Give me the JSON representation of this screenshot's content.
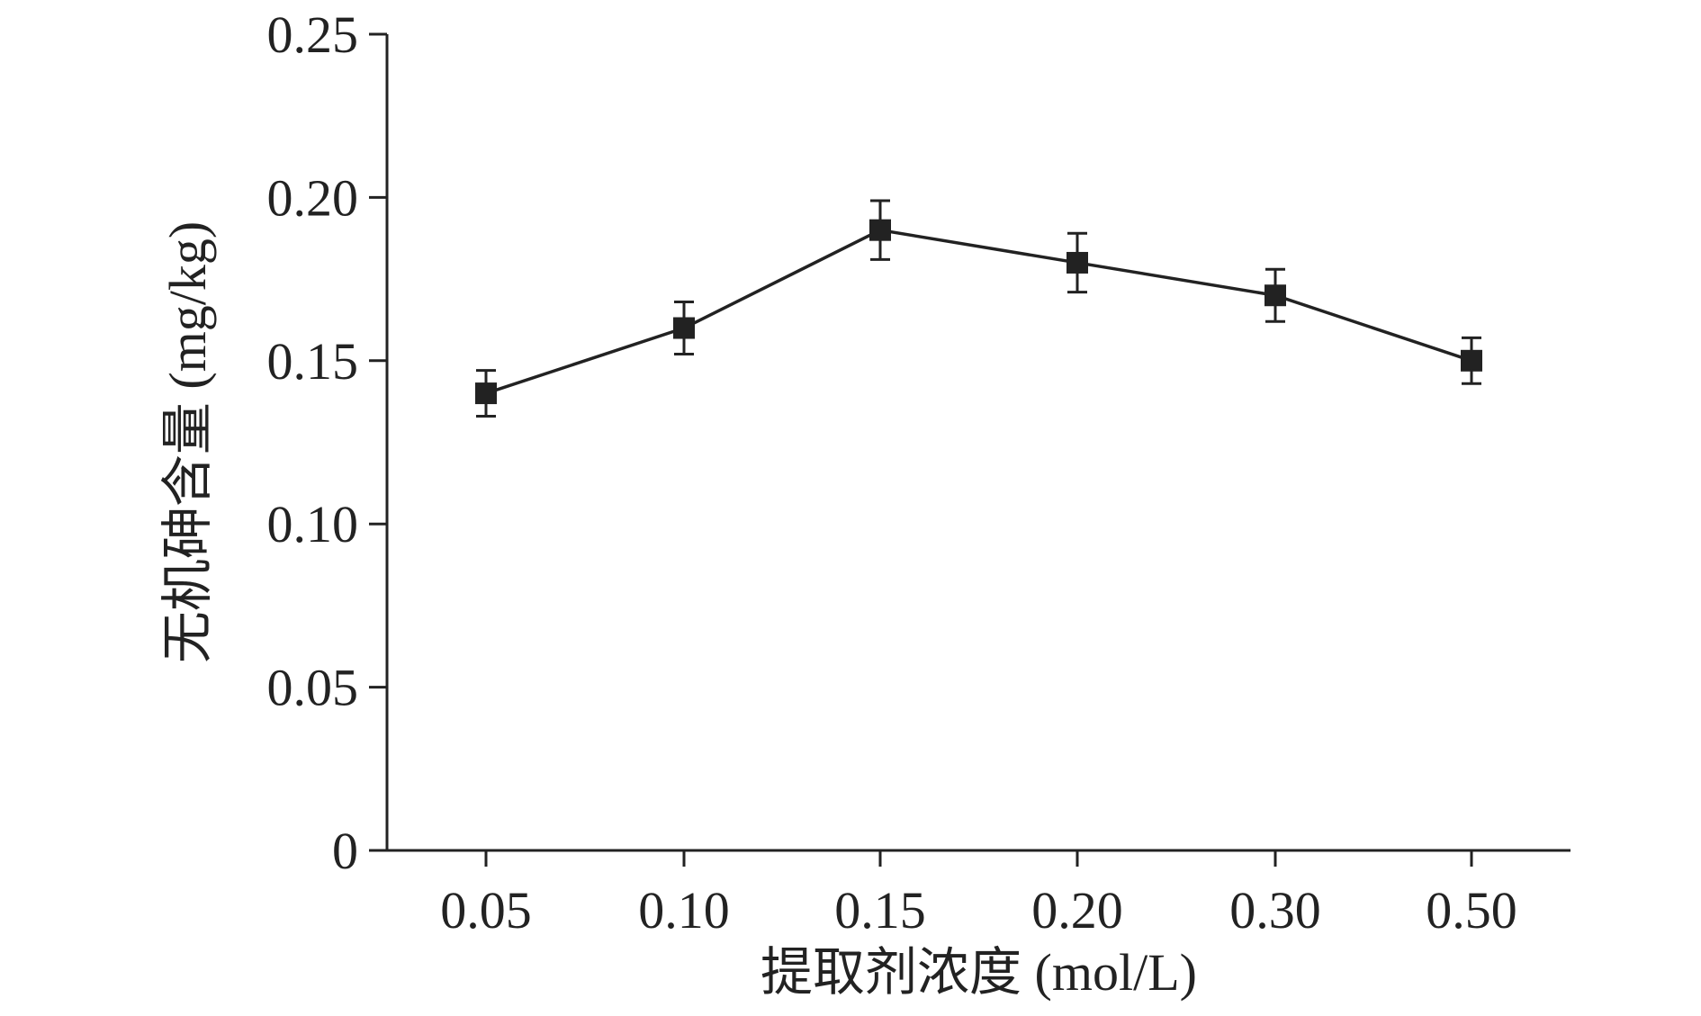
{
  "chart_data": {
    "type": "line",
    "title": "",
    "xlabel": "提取剂浓度 (mol/L)",
    "ylabel": "无机砷含量 (mg/kg)",
    "categories": [
      "0.05",
      "0.10",
      "0.15",
      "0.20",
      "0.30",
      "0.50"
    ],
    "series": [
      {
        "name": "",
        "values": [
          0.14,
          0.16,
          0.19,
          0.18,
          0.17,
          0.15
        ],
        "errors": [
          0.007,
          0.008,
          0.009,
          0.009,
          0.008,
          0.007
        ],
        "marker": "square",
        "color": "#222222"
      }
    ],
    "ylim": [
      0,
      0.25
    ],
    "yticks": [
      0,
      0.05,
      0.1,
      0.15,
      0.2,
      0.25
    ],
    "ytick_labels": [
      "0",
      "0.05",
      "0.10",
      "0.15",
      "0.20",
      "0.25"
    ],
    "grid": false,
    "legend": "none"
  }
}
